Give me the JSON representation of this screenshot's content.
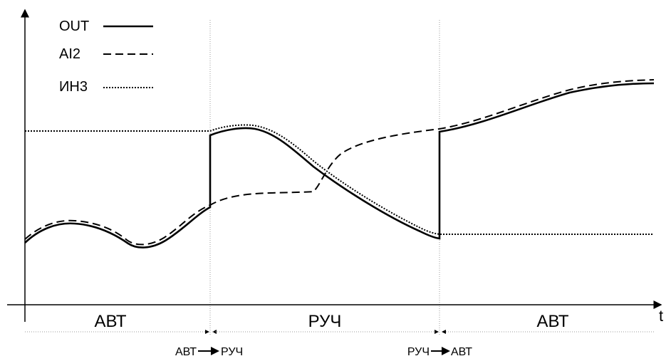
{
  "legend": [
    {
      "label": "OUT",
      "style": "solid"
    },
    {
      "label": "AI2",
      "style": "dashed"
    },
    {
      "label": "ИН3",
      "style": "dotted"
    }
  ],
  "axis": {
    "x_label": "t"
  },
  "modes": [
    "АВТ",
    "РУЧ",
    "АВТ"
  ],
  "transitions": [
    {
      "from": "АВТ",
      "to": "РУЧ"
    },
    {
      "from": "РУЧ",
      "to": "АВТ"
    }
  ],
  "colors": {
    "line": "#000000",
    "guide": "#9a9a9a",
    "background": "#ffffff"
  }
}
